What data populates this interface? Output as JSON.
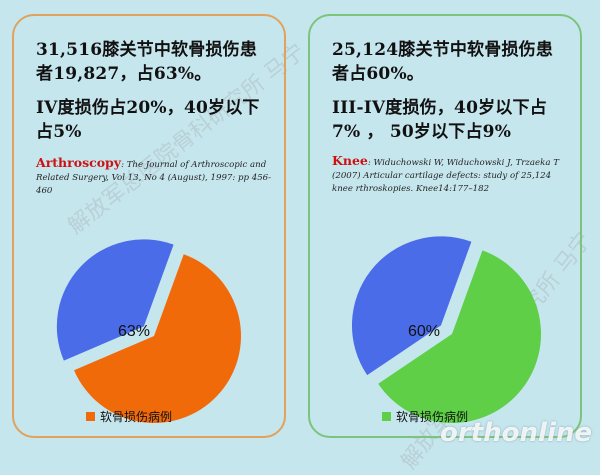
{
  "left": {
    "headline1": "31,516膝关节中软骨损伤患者19,827，占63%。",
    "headline2": "IV度损伤占20%，40岁以下占5%",
    "source": "Arthroscopy",
    "citation": ": The Journal of Arthroscopic and Related Surgery, Vol 13, No 4 (August), 1997: pp 456-460",
    "pie_label": "63%",
    "legend": "软骨损伤病例"
  },
  "right": {
    "headline1": "25,124膝关节中软骨损伤患者占60%。",
    "headline2": "III-IV度损伤，40岁以下占7% ， 50岁以下占9%",
    "source": "Knee",
    "citation": ":   Widuchowski W, Widuchowski J, Trzaeka T (2007) Articular cartilage defects: study of 25,124 knee rthroskopies. Knee14:177–182",
    "pie_label": "60%",
    "legend": "软骨损伤病例"
  },
  "chart_data": [
    {
      "type": "pie",
      "slices": [
        {
          "name": "软骨损伤病例",
          "value": 63,
          "color": "#f06a0a"
        },
        {
          "name": "",
          "value": 37,
          "color": "#4a6ce8"
        }
      ]
    },
    {
      "type": "pie",
      "slices": [
        {
          "name": "软骨损伤病例",
          "value": 60,
          "color": "#5ecf47"
        },
        {
          "name": "",
          "value": 40,
          "color": "#4a6ce8"
        }
      ]
    }
  ],
  "watermark": "解放军总医院骨科研究所 马宁",
  "logo": "orthonline"
}
